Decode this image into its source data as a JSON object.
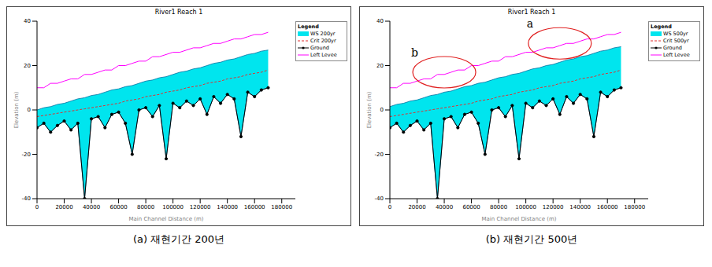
{
  "chart_data": [
    {
      "type": "line",
      "title": "River1 Reach 1",
      "subtitle": "(a) 재현기간 200년",
      "x_label": "Main Channel Distance (m)",
      "y_label": "Elevation (m)",
      "legend": "right",
      "legend_title": "Legend",
      "xlim": [
        0,
        190000
      ],
      "xticks": [
        0,
        20000,
        40000,
        60000,
        80000,
        100000,
        120000,
        140000,
        160000,
        180000
      ],
      "ylim": [
        -40,
        40
      ],
      "yticks": [
        -40,
        -20,
        0,
        20,
        40
      ],
      "x": [
        0,
        5000,
        10000,
        15000,
        20000,
        25000,
        30000,
        35000,
        40000,
        45000,
        50000,
        55000,
        60000,
        65000,
        70000,
        75000,
        80000,
        85000,
        90000,
        95000,
        100000,
        105000,
        110000,
        115000,
        120000,
        125000,
        130000,
        135000,
        140000,
        145000,
        150000,
        155000,
        160000,
        165000,
        170000
      ],
      "series": [
        {
          "name": "WS 200yr",
          "type": "area",
          "color": "#00e5ee",
          "values": [
            0,
            1,
            1.5,
            2.5,
            3,
            4,
            5,
            5.5,
            6.5,
            7,
            8,
            9,
            9.5,
            10.5,
            11,
            12,
            13,
            13.5,
            14.5,
            15,
            16,
            17,
            17.5,
            18.5,
            19,
            20,
            21,
            21.5,
            22.5,
            23,
            24,
            25,
            25.5,
            26.5,
            27
          ]
        },
        {
          "name": "Crit 200yr",
          "type": "line",
          "color": "#e03030",
          "line_style": "dashed",
          "values": [
            -3,
            -2.5,
            -2,
            -1.5,
            -1,
            -0.5,
            0,
            0.5,
            1,
            1.5,
            2,
            2.5,
            3,
            4,
            4.5,
            5,
            6,
            6.5,
            7,
            8,
            8.5,
            9,
            10,
            10.5,
            11,
            12,
            12.5,
            13,
            14,
            14.5,
            15,
            16,
            16.5,
            17,
            18
          ]
        },
        {
          "name": "Ground",
          "type": "line",
          "color": "#000000",
          "marker": "circle",
          "values": [
            -8,
            -6,
            -10,
            -7,
            -5,
            -9,
            -6,
            -40,
            -4,
            -3,
            -8,
            -2,
            -1,
            -6,
            -20,
            0,
            1,
            -3,
            2,
            -22,
            3,
            1,
            4,
            2,
            5,
            -2,
            6,
            3,
            7,
            5,
            -12,
            8,
            6,
            9,
            10
          ]
        },
        {
          "name": "Left Levee",
          "type": "line",
          "color": "#ff00ff",
          "line_style": "solid",
          "values": [
            10,
            10,
            12,
            12,
            13,
            14,
            14,
            16,
            16,
            17,
            18,
            18,
            20,
            20,
            21,
            22,
            22,
            24,
            24,
            25,
            26,
            26,
            27,
            28,
            28,
            29,
            30,
            30,
            31,
            32,
            32,
            33,
            34,
            34,
            35
          ]
        }
      ]
    },
    {
      "type": "line",
      "title": "River1 Reach 1",
      "subtitle": "(b) 재현기간 500년",
      "x_label": "Main Channel Distance (m)",
      "y_label": "Elevation (m)",
      "legend": "right",
      "legend_title": "Legend",
      "xlim": [
        0,
        190000
      ],
      "xticks": [
        0,
        20000,
        40000,
        60000,
        80000,
        100000,
        120000,
        140000,
        160000,
        180000
      ],
      "ylim": [
        -40,
        40
      ],
      "yticks": [
        -40,
        -20,
        0,
        20,
        40
      ],
      "annotations": [
        {
          "text": "a",
          "x": 125000,
          "y": 30,
          "color": "#e02020"
        },
        {
          "text": "b",
          "x": 40000,
          "y": 17,
          "color": "#e02020"
        }
      ],
      "x": [
        0,
        5000,
        10000,
        15000,
        20000,
        25000,
        30000,
        35000,
        40000,
        45000,
        50000,
        55000,
        60000,
        65000,
        70000,
        75000,
        80000,
        85000,
        90000,
        95000,
        100000,
        105000,
        110000,
        115000,
        120000,
        125000,
        130000,
        135000,
        140000,
        145000,
        150000,
        155000,
        160000,
        165000,
        170000
      ],
      "series": [
        {
          "name": "WS 500yr",
          "type": "area",
          "color": "#00e5ee",
          "values": [
            1.5,
            2.5,
            3,
            4,
            4.5,
            5.5,
            6.5,
            7,
            8,
            8.5,
            9.5,
            10.5,
            11,
            12,
            12.5,
            13.5,
            14.5,
            15,
            16,
            16.5,
            17.5,
            18.5,
            19,
            20,
            20.5,
            21.5,
            22.5,
            23,
            24,
            24.5,
            25.5,
            26.5,
            27,
            28,
            28.5
          ]
        },
        {
          "name": "Crit 500yr",
          "type": "line",
          "color": "#e03030",
          "line_style": "dashed",
          "values": [
            -3,
            -2.5,
            -2,
            -1.5,
            -1,
            -0.5,
            0,
            0.5,
            1,
            1.5,
            2,
            2.5,
            3,
            4,
            4.5,
            5,
            6,
            6.5,
            7,
            8,
            8.5,
            9,
            10,
            10.5,
            11,
            12,
            12.5,
            13,
            14,
            14.5,
            15,
            16,
            16.5,
            17,
            18
          ]
        },
        {
          "name": "Ground",
          "type": "line",
          "color": "#000000",
          "marker": "circle",
          "values": [
            -8,
            -6,
            -10,
            -7,
            -5,
            -9,
            -6,
            -40,
            -4,
            -3,
            -8,
            -2,
            -1,
            -6,
            -20,
            0,
            1,
            -3,
            2,
            -22,
            3,
            1,
            4,
            2,
            5,
            -2,
            6,
            3,
            7,
            5,
            -12,
            8,
            6,
            9,
            10
          ]
        },
        {
          "name": "Left Levee",
          "type": "line",
          "color": "#ff00ff",
          "line_style": "solid",
          "values": [
            10,
            10,
            12,
            12,
            13,
            14,
            14,
            16,
            16,
            17,
            18,
            18,
            20,
            20,
            21,
            22,
            22,
            24,
            24,
            25,
            26,
            26,
            27,
            28,
            28,
            29,
            30,
            30,
            31,
            32,
            32,
            33,
            34,
            34,
            35
          ]
        }
      ]
    }
  ]
}
